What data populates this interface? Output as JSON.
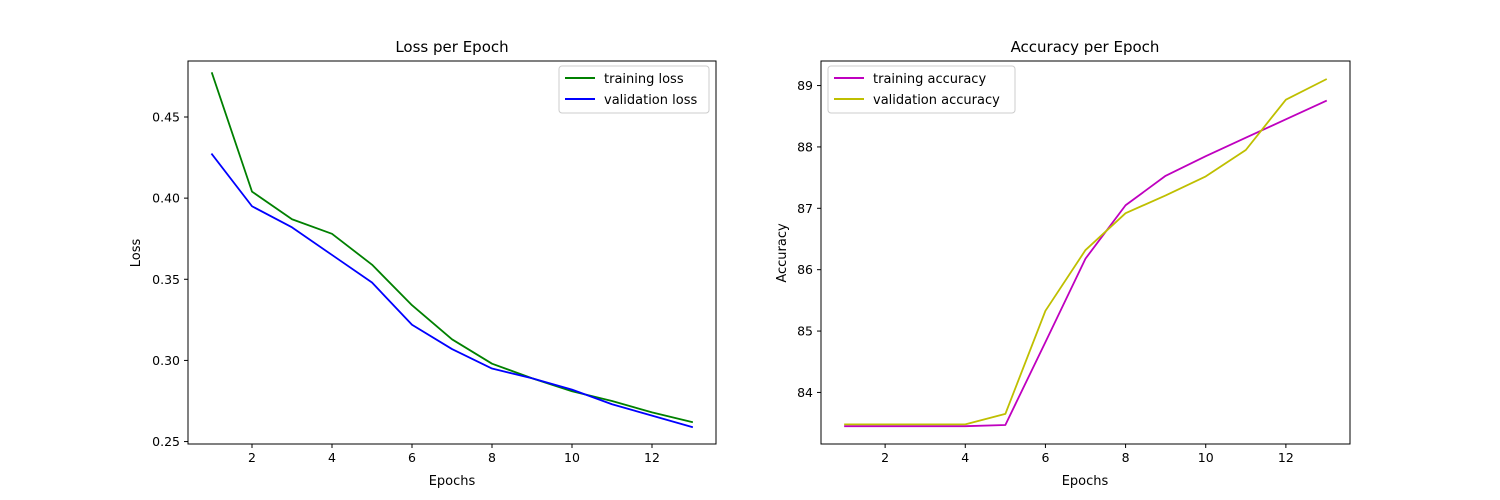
{
  "chart_data": [
    {
      "type": "line",
      "title": "Loss per Epoch",
      "xlabel": "Epochs",
      "ylabel": "Loss",
      "xlim": [
        0.4,
        13.6
      ],
      "ylim": [
        0.2485,
        0.4845
      ],
      "xticks": [
        2,
        4,
        6,
        8,
        10,
        12
      ],
      "yticks": [
        0.25,
        0.3,
        0.35,
        0.4,
        0.45
      ],
      "ytick_labels": [
        "0.25",
        "0.30",
        "0.35",
        "0.40",
        "0.45"
      ],
      "legend_position": "top-right",
      "x": [
        1,
        2,
        3,
        4,
        5,
        6,
        7,
        8,
        9,
        10,
        11,
        12,
        13
      ],
      "series": [
        {
          "name": "training loss",
          "color": "#008000",
          "values": [
            0.477,
            0.404,
            0.387,
            0.378,
            0.359,
            0.334,
            0.313,
            0.298,
            0.289,
            0.281,
            0.275,
            0.268,
            0.262
          ]
        },
        {
          "name": "validation loss",
          "color": "#0000ff",
          "values": [
            0.427,
            0.395,
            0.382,
            0.365,
            0.348,
            0.322,
            0.307,
            0.295,
            0.289,
            0.282,
            0.273,
            0.266,
            0.259
          ]
        }
      ]
    },
    {
      "type": "line",
      "title": "Accuracy per Epoch",
      "xlabel": "Epochs",
      "ylabel": "Accuracy",
      "xlim": [
        0.4,
        13.6
      ],
      "ylim": [
        83.16,
        89.4
      ],
      "xticks": [
        2,
        4,
        6,
        8,
        10,
        12
      ],
      "yticks": [
        84,
        85,
        86,
        87,
        88,
        89
      ],
      "ytick_labels": [
        "84",
        "85",
        "86",
        "87",
        "88",
        "89"
      ],
      "legend_position": "top-left",
      "x": [
        1,
        2,
        3,
        4,
        5,
        6,
        7,
        8,
        9,
        10,
        11,
        12,
        13
      ],
      "series": [
        {
          "name": "training accuracy",
          "color": "#bf00bf",
          "values": [
            83.45,
            83.45,
            83.45,
            83.45,
            83.47,
            84.82,
            86.18,
            87.05,
            87.53,
            87.85,
            88.15,
            88.45,
            88.75
          ]
        },
        {
          "name": "validation accuracy",
          "color": "#bfbf00",
          "values": [
            83.48,
            83.48,
            83.48,
            83.48,
            83.65,
            85.33,
            86.32,
            86.92,
            87.21,
            87.52,
            87.95,
            88.77,
            89.1
          ]
        }
      ]
    }
  ]
}
